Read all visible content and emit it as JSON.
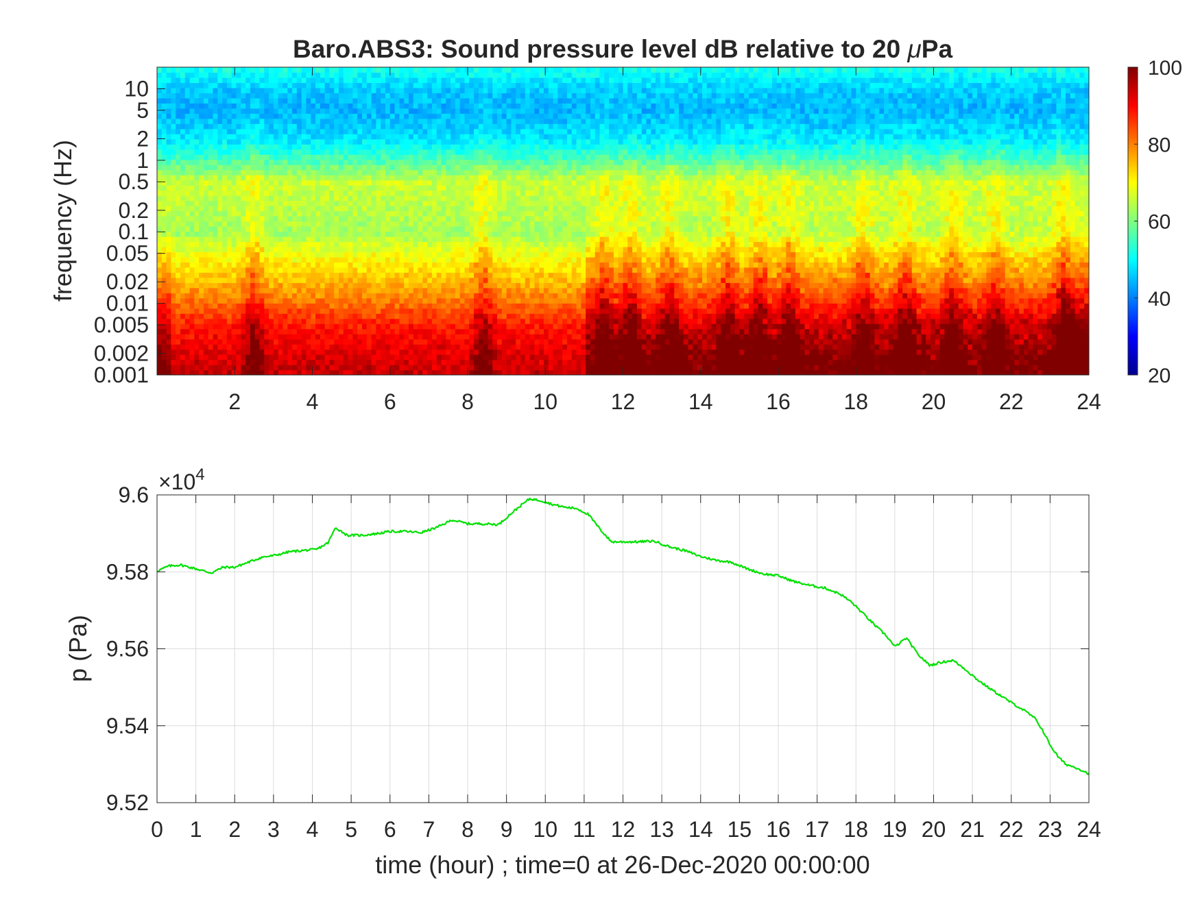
{
  "chart_data": [
    {
      "type": "heatmap",
      "title_main": "Baro.ABS3: Sound pressure level dB relative to 20 ",
      "title_mu": "μ",
      "title_unit": "Pa",
      "xlabel": "",
      "ylabel": "frequency (Hz)",
      "x_scale": "linear",
      "y_scale": "log",
      "xlim": [
        0,
        24
      ],
      "ylim": [
        0.001,
        20
      ],
      "x_ticks": [
        2,
        4,
        6,
        8,
        10,
        12,
        14,
        16,
        18,
        20,
        22,
        24
      ],
      "y_ticks": [
        0.001,
        0.002,
        0.005,
        0.01,
        0.02,
        0.05,
        0.1,
        0.2,
        0.5,
        1,
        2,
        5,
        10
      ],
      "y_tick_labels": [
        "0.001",
        "0.002",
        "0.005",
        "0.01",
        "0.02",
        "0.05",
        "0.1",
        "0.2",
        "0.5",
        "1",
        "2",
        "5",
        "10"
      ],
      "colorbar": {
        "colormap": "jet",
        "range": [
          20,
          100
        ],
        "ticks": [
          20,
          40,
          60,
          80,
          100
        ]
      },
      "band_profile_db": {
        "frequency_hz": [
          0.001,
          0.002,
          0.005,
          0.01,
          0.02,
          0.05,
          0.1,
          0.2,
          0.5,
          1,
          2,
          5,
          10,
          20
        ],
        "level_db": [
          92,
          90,
          86,
          80,
          74,
          68,
          62,
          64,
          66,
          56,
          48,
          44,
          46,
          52
        ]
      },
      "activity_hours": [
        2.5,
        8.4,
        11.5,
        12.2,
        13.2,
        14.7,
        15.5,
        16.3,
        18.2,
        19.3,
        20.5,
        21.6,
        23.3
      ]
    },
    {
      "type": "line",
      "xlabel": "time (hour) ; time=0 at 26-Dec-2020 00:00:00",
      "ylabel": "p (Pa)",
      "multiplier_base": "×10",
      "multiplier_exp": "4",
      "xlim": [
        0,
        24
      ],
      "ylim": [
        9.52,
        9.6
      ],
      "x_ticks": [
        0,
        1,
        2,
        3,
        4,
        5,
        6,
        7,
        8,
        9,
        10,
        11,
        12,
        13,
        14,
        15,
        16,
        17,
        18,
        19,
        20,
        21,
        22,
        23,
        24
      ],
      "y_ticks": [
        9.52,
        9.54,
        9.56,
        9.58,
        9.6
      ],
      "y_tick_labels": [
        "9.52",
        "9.54",
        "9.56",
        "9.58",
        "9.6"
      ],
      "grid": true,
      "line_color": "#00e000",
      "series": [
        {
          "x": [
            0,
            0.3,
            0.6,
            1.0,
            1.4,
            1.7,
            2.0,
            2.3,
            2.7,
            3.0,
            3.4,
            3.8,
            4.1,
            4.4,
            4.6,
            4.9,
            5.3,
            5.7,
            6.0,
            6.4,
            6.8,
            7.2,
            7.6,
            8.0,
            8.4,
            8.8,
            9.1,
            9.4,
            9.6,
            9.9,
            10.2,
            10.5,
            10.8,
            11.1,
            11.4,
            11.7,
            12.0,
            12.4,
            12.8,
            13.2,
            13.6,
            14.0,
            14.4,
            14.8,
            15.2,
            15.6,
            16.0,
            16.4,
            16.8,
            17.2,
            17.6,
            17.9,
            18.2,
            18.5,
            18.8,
            19.0,
            19.3,
            19.6,
            19.9,
            20.2,
            20.5,
            20.8,
            21.1,
            21.4,
            21.7,
            22.0,
            22.3,
            22.6,
            22.8,
            23.0,
            23.2,
            23.4,
            23.7,
            24.0
          ],
          "y": [
            9.5802,
            9.5815,
            9.5818,
            9.5808,
            9.5797,
            9.5812,
            9.5812,
            9.5823,
            9.5838,
            9.5842,
            9.5852,
            9.5856,
            9.5858,
            9.5875,
            9.5915,
            9.5895,
            9.5895,
            9.59,
            9.5905,
            9.5905,
            9.5902,
            9.5915,
            9.5935,
            9.5925,
            9.5925,
            9.5923,
            9.595,
            9.5975,
            9.599,
            9.5985,
            9.5975,
            9.5968,
            9.5965,
            9.595,
            9.5912,
            9.5878,
            9.5878,
            9.5878,
            9.588,
            9.5865,
            9.5855,
            9.584,
            9.583,
            9.5825,
            9.5808,
            9.5795,
            9.579,
            9.5775,
            9.5765,
            9.5758,
            9.5742,
            9.572,
            9.569,
            9.566,
            9.5632,
            9.5605,
            9.5628,
            9.5585,
            9.5557,
            9.5565,
            9.557,
            9.5548,
            9.5522,
            9.55,
            9.548,
            9.546,
            9.5442,
            9.542,
            9.539,
            9.535,
            9.532,
            9.53,
            9.529,
            9.5275
          ]
        }
      ]
    }
  ]
}
